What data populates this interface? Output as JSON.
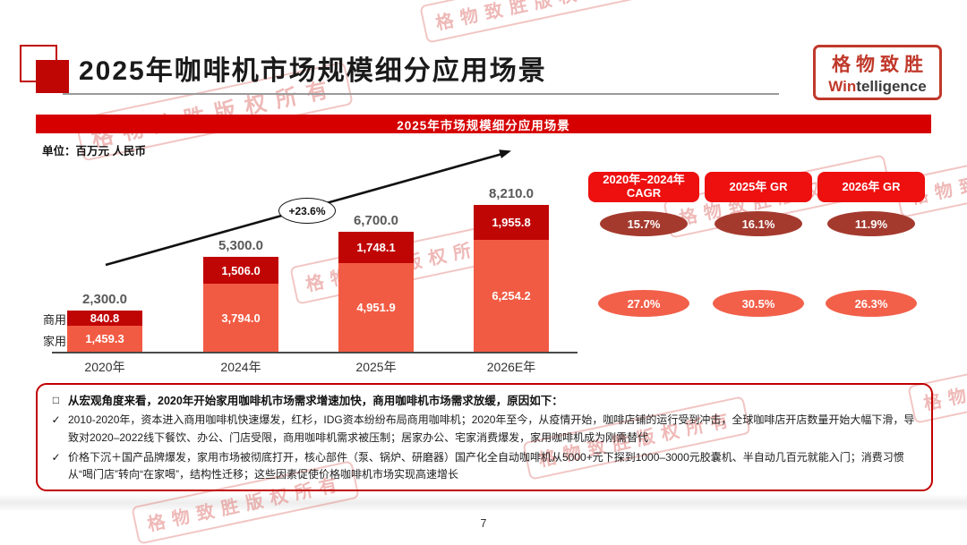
{
  "page": {
    "number": "7"
  },
  "watermark": {
    "text": "格物致胜版权所有"
  },
  "logo": {
    "cn": "格物致胜",
    "en_red": "Win",
    "en_dark": "telligence"
  },
  "header": {
    "title": "2025年咖啡机市场规模细分应用场景"
  },
  "banner": {
    "title": "2025年市场规模细分应用场景"
  },
  "chart_data": {
    "type": "bar",
    "stacked": true,
    "title": "2025年市场规模细分应用场景",
    "unit_label": "单位：百万元 人民币",
    "categories": [
      "2020年",
      "2024年",
      "2025年",
      "2026E年"
    ],
    "series": [
      {
        "name": "家用",
        "color": "#F25B43",
        "values": [
          1459.3,
          3794.0,
          4951.9,
          6254.2
        ],
        "labels": [
          "1,459.3",
          "3,794.0",
          "4,951.9",
          "6,254.2"
        ]
      },
      {
        "name": "商用",
        "color": "#C00505",
        "values": [
          840.8,
          1506.0,
          1748.1,
          1955.8
        ],
        "labels": [
          "840.8",
          "1,506.0",
          "1,748.1",
          "1,955.8"
        ]
      }
    ],
    "totals": [
      2300.0,
      5300.0,
      6700.0,
      8210.0
    ],
    "total_labels": [
      "2,300.0",
      "5,300.0",
      "6,700.0",
      "8,210.0"
    ],
    "growth_annotation": "+23.6%",
    "ylim": [
      0,
      8500
    ],
    "grid": false,
    "legend_position": "left-of-first-bar"
  },
  "stats_panel": {
    "columns": [
      {
        "header": "2020年~2024年\nCAGR",
        "dark_value": "15.7%",
        "light_value": "27.0%"
      },
      {
        "header": "2025年 GR",
        "dark_value": "16.1%",
        "light_value": "30.5%"
      },
      {
        "header": "2026年 GR",
        "dark_value": "11.9%",
        "light_value": "26.3%"
      }
    ]
  },
  "notes": {
    "headline_marker": "□",
    "headline": "从宏观角度来看，2020年开始家用咖啡机市场需求增速加快，商用咖啡机市场需求放缓，原因如下：",
    "bullet_marker": "✓",
    "bullets": [
      "2010-2020年，资本进入商用咖啡机快速爆发，红杉，IDG资本纷纷布局商用咖啡机；2020年至今，从疫情开始，咖啡店铺的运行受到冲击，全球咖啡店开店数量开始大幅下滑，导致对2020–2022线下餐饮、办公、门店受限，商用咖啡机需求被压制；居家办公、宅家消费爆发，家用咖啡机成为刚需替代",
      "价格下沉＋国产品牌爆发，家用市场被彻底打开，核心部件（泵、锅炉、研磨器）国产化全自动咖啡机从5000+元下探到1000–3000元胶囊机、半自动几百元就能入门；消费习惯从“喝门店”转向“在家喝”，结构性迁移；这些因素促使价格咖啡机市场实现高速增长"
    ]
  },
  "colors": {
    "banner_red": "#D60000",
    "button_red": "#EE0F0F",
    "commercial_red": "#C00505",
    "home_orange": "#F25B43",
    "ellipse_dark": "#A43A2E",
    "ellipse_light": "#F2604A",
    "box_border": "#C00000",
    "seal_red": "#C0392B"
  }
}
